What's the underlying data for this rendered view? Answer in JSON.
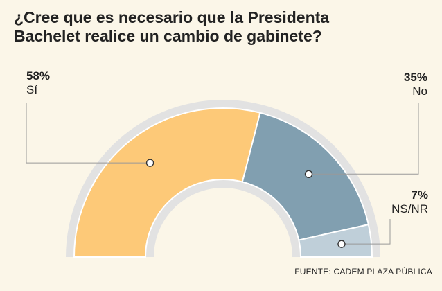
{
  "title_lines": [
    "¿Cree que es necesario que la Presidenta",
    "Bachelet realice un cambio de gabinete?"
  ],
  "source": "FUENTE: CADEM PLAZA PÚBLICA",
  "chart_data": {
    "type": "pie",
    "shape": "half-donut",
    "title": "¿Cree que es necesario que la Presidenta Bachelet realice un cambio de gabinete?",
    "categories": [
      "Sí",
      "No",
      "NS/NR"
    ],
    "values": [
      58,
      35,
      7
    ],
    "value_labels": [
      "58%",
      "35%",
      "7%"
    ],
    "colors": [
      "#fdc978",
      "#819fb0",
      "#bfcfd9"
    ],
    "ring_color": "#e2e2e2",
    "leader_color": "#999999"
  }
}
